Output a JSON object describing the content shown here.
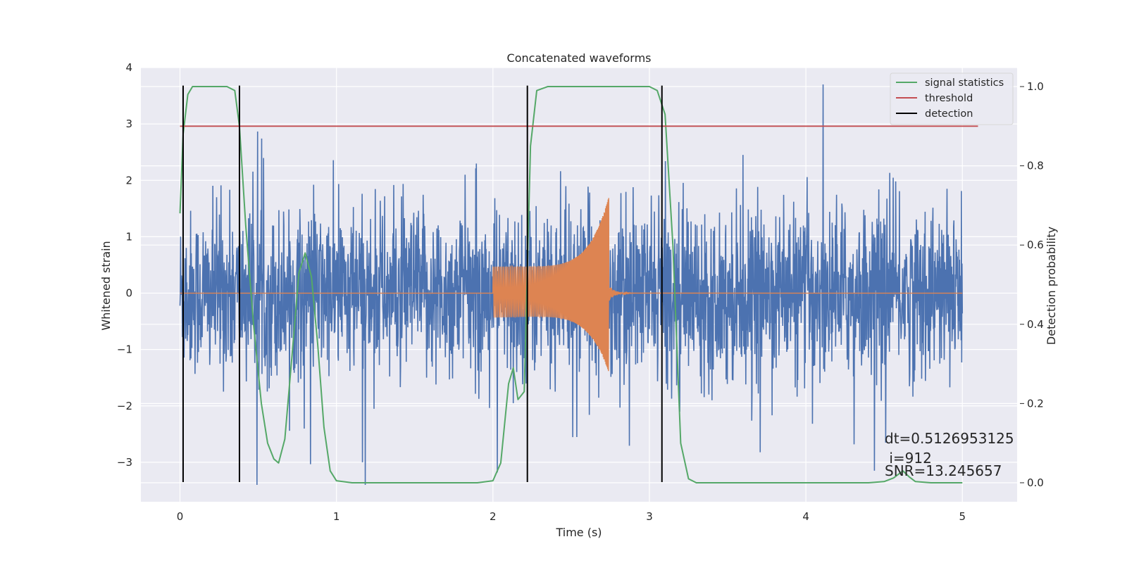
{
  "chart_data": {
    "type": "line",
    "title": "Concatenated waveforms",
    "xlabel": "Time (s)",
    "ylabel": "Whitened strain",
    "y2label": "Detection probability",
    "xlim": [
      -0.25,
      5.35
    ],
    "ylim": [
      -3.7,
      4.0
    ],
    "y2lim": [
      -0.048,
      1.048
    ],
    "xticks": [
      0,
      1,
      2,
      3,
      4,
      5
    ],
    "yticks": [
      -3,
      -2,
      -1,
      0,
      1,
      2,
      3,
      4
    ],
    "y2ticks": [
      0.0,
      0.2,
      0.4,
      0.6,
      0.8,
      1.0
    ],
    "xtick_labels": [
      "0",
      "1",
      "2",
      "3",
      "4",
      "5"
    ],
    "ytick_labels": [
      "−3",
      "−2",
      "−1",
      "0",
      "1",
      "2",
      "3",
      "4"
    ],
    "y2tick_labels": [
      "0.0",
      "0.2",
      "0.4",
      "0.6",
      "0.8",
      "1.0"
    ],
    "grid": true,
    "legend_position": "top-right",
    "legend": [
      {
        "label": "signal statistics",
        "color": "#55a868"
      },
      {
        "label": "threshold",
        "color": "#c44e52"
      },
      {
        "label": "detection",
        "color": "#000000"
      }
    ],
    "series": [
      {
        "name": "whitened strain",
        "axis": "left",
        "color": "#4c72b0",
        "kind": "noise",
        "x_range": [
          0,
          5
        ],
        "typical_envelope": [
          -1.1,
          1.3
        ],
        "spike_min": -3.4,
        "spike_max": 3.7
      },
      {
        "name": "injected waveform",
        "axis": "left",
        "color": "#dd8452",
        "kind": "chirp",
        "x_range": [
          0,
          5
        ],
        "chirp_start": 2.0,
        "chirp_peak": 2.74,
        "amplitude_start": 0.47,
        "amplitude_peak_upper": 1.7,
        "amplitude_peak_lower": -1.4
      },
      {
        "name": "signal statistics",
        "axis": "right",
        "color": "#55a868",
        "x": [
          0.0,
          0.02,
          0.05,
          0.08,
          0.12,
          0.2,
          0.3,
          0.35,
          0.38,
          0.42,
          0.47,
          0.52,
          0.56,
          0.6,
          0.63,
          0.67,
          0.72,
          0.76,
          0.8,
          0.84,
          0.88,
          0.92,
          0.96,
          1.0,
          1.1,
          1.5,
          1.9,
          2.0,
          2.05,
          2.1,
          2.13,
          2.16,
          2.2,
          2.24,
          2.28,
          2.35,
          2.5,
          2.8,
          3.0,
          3.05,
          3.1,
          3.15,
          3.2,
          3.25,
          3.3,
          3.6,
          4.0,
          4.4,
          4.5,
          4.56,
          4.62,
          4.66,
          4.7,
          4.8,
          5.0
        ],
        "y": [
          0.68,
          0.88,
          0.98,
          1.0,
          1.0,
          1.0,
          1.0,
          0.99,
          0.9,
          0.65,
          0.4,
          0.2,
          0.1,
          0.06,
          0.05,
          0.11,
          0.34,
          0.53,
          0.58,
          0.52,
          0.35,
          0.14,
          0.03,
          0.005,
          0.0,
          0.0,
          0.0,
          0.005,
          0.05,
          0.25,
          0.29,
          0.21,
          0.23,
          0.85,
          0.99,
          1.0,
          1.0,
          1.0,
          1.0,
          0.99,
          0.93,
          0.6,
          0.1,
          0.01,
          0.0,
          0.0,
          0.0,
          0.0,
          0.003,
          0.012,
          0.03,
          0.015,
          0.003,
          0.0,
          0.0
        ]
      },
      {
        "name": "threshold",
        "axis": "right",
        "color": "#c44e52",
        "x": [
          0.0,
          5.1
        ],
        "y": [
          0.9,
          0.9
        ]
      }
    ],
    "detections": {
      "color": "#000000",
      "x": [
        0.02,
        0.38,
        2.22,
        3.08
      ],
      "ymin": -3.35,
      "ymax": 3.68
    },
    "annotation": {
      "lines": [
        "dt=0.5126953125",
        " i=912",
        "SNR=13.245657"
      ]
    }
  }
}
